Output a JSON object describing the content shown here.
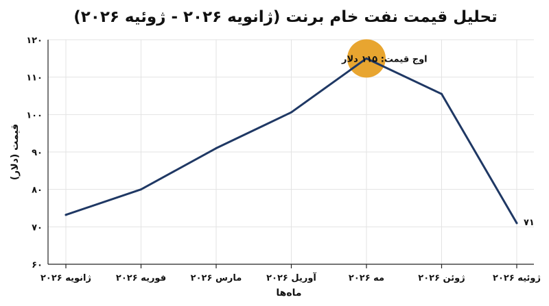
{
  "chart_data": {
    "type": "line",
    "title": "تحلیل قیمت نفت خام برنت (ژانویه ۲۰۲۶ - ژوئیه ۲۰۲۶)",
    "xlabel": "ماه‌ها",
    "ylabel": "قیمت (دلار)",
    "categories": [
      "ژانویه ۲۰۲۶",
      "فوریه ۲۰۲۶",
      "مارس ۲۰۲۶",
      "آوریل ۲۰۲۶",
      "مه ۲۰۲۶",
      "ژوئن ۲۰۲۶",
      "ژوئیه ۲۰۲۶"
    ],
    "series": [
      {
        "values": [
          73.2,
          80,
          91,
          100.6,
          115,
          105.5,
          71
        ]
      }
    ],
    "ylim": [
      60,
      120
    ],
    "yticks": [
      60,
      70,
      80,
      90,
      100,
      110,
      120
    ],
    "ytick_labels": [
      "۶۰",
      "۷۰",
      "۸۰",
      "۹۰",
      "۱۰۰",
      "۱۱۰",
      "۱۲۰"
    ],
    "grid": true,
    "annotations": [
      {
        "category_index": 4,
        "text": "اوج قیمت: ۱۱۵ دلار"
      },
      {
        "category_index": 6,
        "text": "۷۱"
      }
    ],
    "colors": {
      "line": "#1f3864",
      "highlight": "#e8a530",
      "axis": "#222222",
      "grid": "#e3e3e3"
    }
  }
}
